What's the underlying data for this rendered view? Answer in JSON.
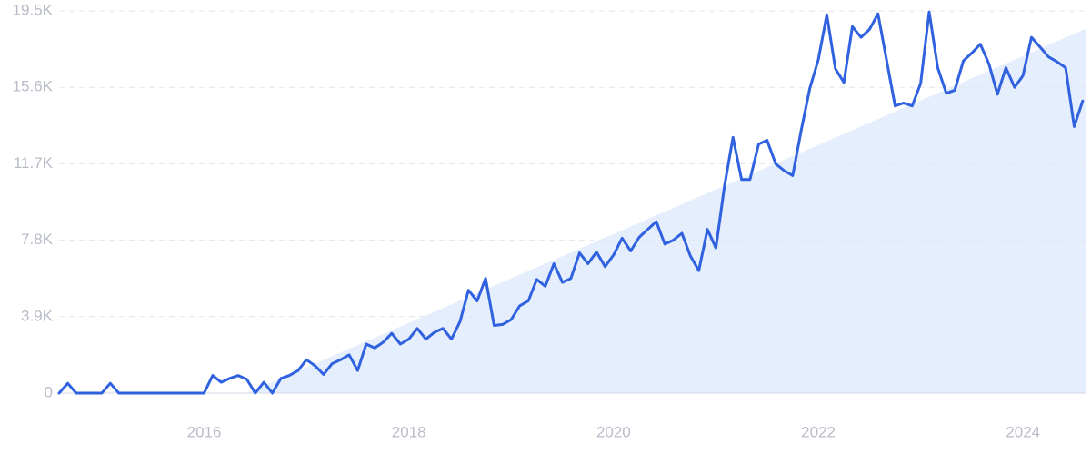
{
  "chart_data": {
    "type": "line",
    "xlim": [
      2014.583,
      2024.62
    ],
    "ylim": [
      0,
      19500
    ],
    "xticks": [
      2016,
      2018,
      2020,
      2022,
      2024
    ],
    "yticks": [
      0,
      {
        "value": 3900,
        "label": "3.9K"
      },
      {
        "value": 7800,
        "label": "7.8K"
      },
      {
        "value": 11700,
        "label": "11.7K"
      },
      {
        "value": 15600,
        "label": "15.6K"
      },
      {
        "value": 19500,
        "label": "19.5K"
      }
    ],
    "grid": true,
    "series": [
      {
        "color": "#3062e0",
        "x": [
          2014.583,
          2014.667,
          2014.75,
          2014.833,
          2014.917,
          2015,
          2015.083,
          2015.167,
          2015.25,
          2015.333,
          2015.417,
          2015.5,
          2015.583,
          2015.667,
          2015.75,
          2015.833,
          2015.917,
          2016,
          2016.083,
          2016.167,
          2016.25,
          2016.333,
          2016.417,
          2016.5,
          2016.583,
          2016.667,
          2016.75,
          2016.833,
          2016.917,
          2017,
          2017.083,
          2017.167,
          2017.25,
          2017.333,
          2017.417,
          2017.5,
          2017.583,
          2017.667,
          2017.75,
          2017.833,
          2017.917,
          2018,
          2018.083,
          2018.167,
          2018.25,
          2018.333,
          2018.417,
          2018.5,
          2018.583,
          2018.667,
          2018.75,
          2018.833,
          2018.917,
          2019,
          2019.083,
          2019.167,
          2019.25,
          2019.333,
          2019.417,
          2019.5,
          2019.583,
          2019.667,
          2019.75,
          2019.833,
          2019.917,
          2020,
          2020.083,
          2020.167,
          2020.25,
          2020.333,
          2020.417,
          2020.5,
          2020.583,
          2020.667,
          2020.75,
          2020.833,
          2020.917,
          2021,
          2021.083,
          2021.167,
          2021.25,
          2021.333,
          2021.417,
          2021.5,
          2021.583,
          2021.667,
          2021.75,
          2021.833,
          2021.917,
          2022,
          2022.083,
          2022.167,
          2022.25,
          2022.333,
          2022.417,
          2022.5,
          2022.583,
          2022.667,
          2022.75,
          2022.833,
          2022.917,
          2023,
          2023.083,
          2023.167,
          2023.25,
          2023.333,
          2023.417,
          2023.5,
          2023.583,
          2023.667,
          2023.75,
          2023.833,
          2023.917,
          2024,
          2024.083,
          2024.167,
          2024.25,
          2024.333,
          2024.417,
          2024.5,
          2024.583
        ],
        "values": [
          0,
          500,
          0,
          0,
          0,
          0,
          500,
          0,
          0,
          0,
          0,
          0,
          0,
          0,
          0,
          0,
          0,
          0,
          900,
          550,
          750,
          900,
          700,
          0,
          550,
          0,
          750,
          900,
          1150,
          1700,
          1400,
          950,
          1500,
          1700,
          1950,
          1150,
          2500,
          2300,
          2600,
          3050,
          2500,
          2750,
          3300,
          2750,
          3100,
          3300,
          2750,
          3650,
          5250,
          4700,
          5850,
          3450,
          3500,
          3750,
          4450,
          4700,
          5800,
          5450,
          6600,
          5650,
          5850,
          7150,
          6600,
          7200,
          6450,
          7050,
          7900,
          7250,
          7950,
          8350,
          8750,
          7600,
          7800,
          8150,
          7000,
          6250,
          8350,
          7400,
          10550,
          13050,
          10900,
          10900,
          12700,
          12900,
          11700,
          11350,
          11100,
          13400,
          15550,
          17000,
          19300,
          16550,
          15850,
          18700,
          18150,
          18550,
          19350,
          17000,
          14650,
          14800,
          14650,
          15800,
          19450,
          16600,
          15300,
          15450,
          16950,
          17350,
          17800,
          16800,
          15250,
          16600,
          15600,
          16200,
          18150,
          17650,
          17150,
          16900,
          16600,
          13600,
          14900
        ]
      }
    ],
    "trend": {
      "x": [
        2016.42,
        2024.62
      ],
      "values": [
        0,
        18600
      ],
      "color": "#dce8fb"
    }
  }
}
